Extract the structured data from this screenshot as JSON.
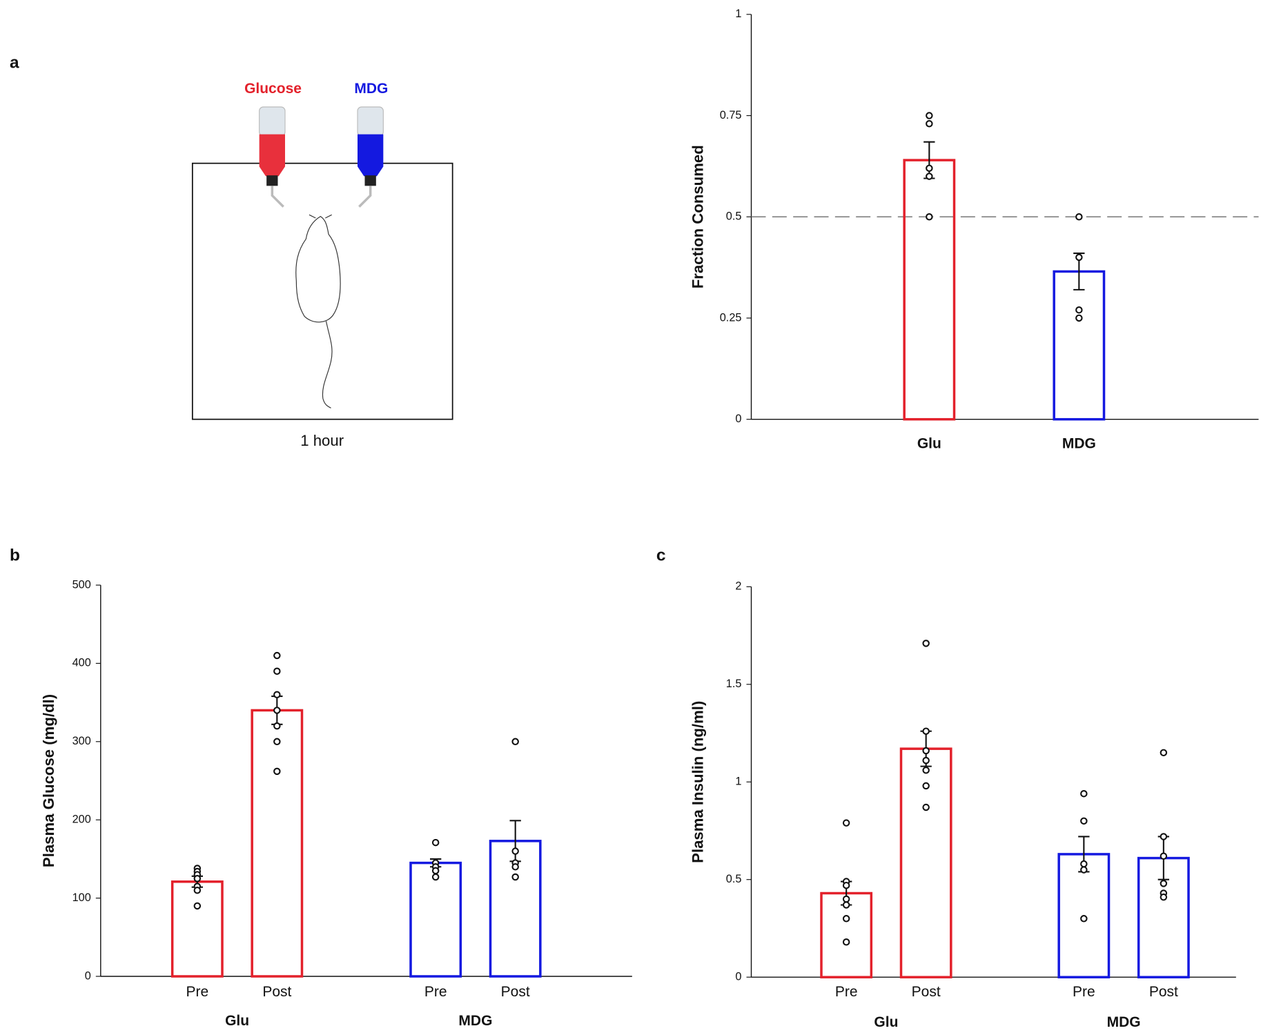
{
  "panel_a": {
    "label": "a",
    "bottle_labels": [
      "Glucose",
      "MDG"
    ],
    "caption": "1 hour"
  },
  "chart_data": [
    {
      "type": "bar",
      "ylabel": "Fraction Consumed",
      "categories": [
        "Glu",
        "MDG"
      ],
      "colors": [
        "#e3212b",
        "#1419e0"
      ],
      "values": [
        0.64,
        0.365
      ],
      "errors": [
        0.045,
        0.045
      ],
      "points": [
        [
          0.75,
          0.73,
          0.62,
          0.6,
          0.5
        ],
        [
          0.5,
          0.4,
          0.27,
          0.25
        ]
      ],
      "reference_line": 0.5,
      "ylim": [
        0,
        1
      ],
      "yticks": [
        0,
        0.25,
        0.5,
        0.75,
        1
      ]
    },
    {
      "type": "bar",
      "panel_label": "b",
      "ylabel": "Plasma Glucose (mg/dl)",
      "categories": [
        "Pre",
        "Post"
      ],
      "series": [
        {
          "name": "Glu",
          "color": "#e3212b",
          "values": [
            121,
            340
          ],
          "errors": [
            7,
            18
          ],
          "points": [
            [
              138,
              134,
              130,
              125,
              115,
              110,
              90
            ],
            [
              410,
              390,
              360,
              340,
              320,
              300,
              262
            ]
          ]
        },
        {
          "name": "MDG",
          "color": "#1419e0",
          "values": [
            145,
            173
          ],
          "errors": [
            5,
            26
          ],
          "points": [
            [
              171,
              145,
              140,
              135,
              127
            ],
            [
              300,
              160,
              145,
              140,
              127
            ]
          ]
        }
      ],
      "ylim": [
        0,
        500
      ],
      "yticks": [
        0,
        100,
        200,
        300,
        400,
        500
      ]
    },
    {
      "type": "bar",
      "panel_label": "c",
      "ylabel": "Plasma Insulin (ng/ml)",
      "categories": [
        "Pre",
        "Post"
      ],
      "series": [
        {
          "name": "Glu",
          "color": "#e3212b",
          "values": [
            0.43,
            1.17
          ],
          "errors": [
            0.06,
            0.09
          ],
          "points": [
            [
              0.79,
              0.49,
              0.47,
              0.4,
              0.37,
              0.3,
              0.18
            ],
            [
              1.71,
              1.26,
              1.16,
              1.11,
              1.06,
              0.98,
              0.87
            ]
          ]
        },
        {
          "name": "MDG",
          "color": "#1419e0",
          "values": [
            0.63,
            0.61
          ],
          "errors": [
            0.09,
            0.11
          ],
          "points": [
            [
              0.94,
              0.8,
              0.58,
              0.55,
              0.3
            ],
            [
              1.15,
              0.72,
              0.62,
              0.48,
              0.43,
              0.41
            ]
          ]
        }
      ],
      "ylim": [
        0,
        2
      ],
      "yticks": [
        0,
        0.5,
        1,
        1.5,
        2
      ]
    }
  ]
}
